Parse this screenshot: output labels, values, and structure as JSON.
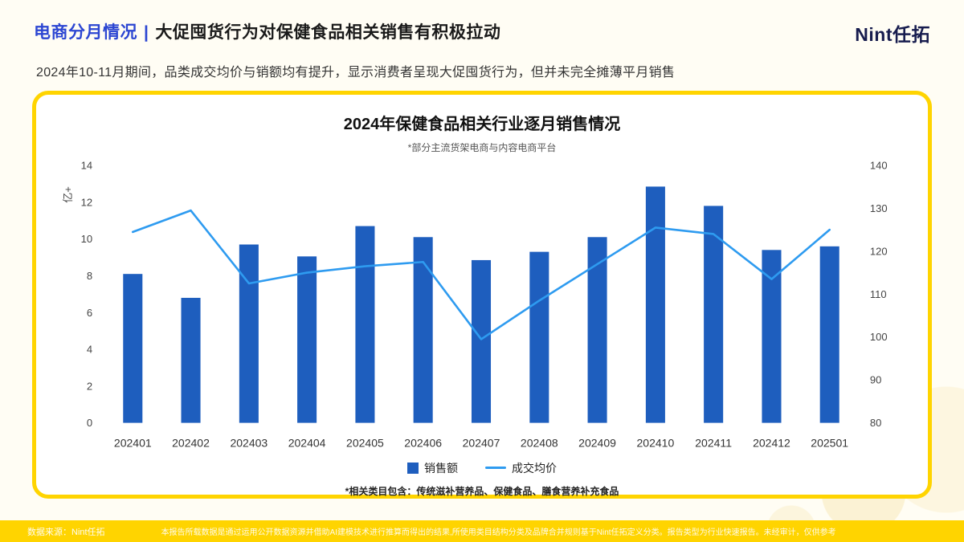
{
  "header": {
    "title_accent": "电商分月情况",
    "title_separator": "|",
    "title_main": "大促囤货行为对保健食品相关销售有积极拉动",
    "logo": "Nint任拓"
  },
  "subtitle": "2024年10-11月期间，品类成交均价与销额均有提升，显示消费者呈现大促囤货行为，但并未完全摊薄平月销售",
  "chart_data": {
    "type": "bar",
    "title": "2024年保健食品相关行业逐月销售情况",
    "subtitle": "*部分主流货架电商与内容电商平台",
    "categories": [
      "202401",
      "202402",
      "202403",
      "202404",
      "202405",
      "202406",
      "202407",
      "202408",
      "202409",
      "202410",
      "202411",
      "202412",
      "202501"
    ],
    "series": [
      {
        "name": "销售额",
        "type": "bar",
        "axis": "left",
        "color": "#1e5ebe",
        "values": [
          8.1,
          6.8,
          9.7,
          9.05,
          10.7,
          10.1,
          8.85,
          9.3,
          10.1,
          12.85,
          11.8,
          9.4,
          9.6
        ]
      },
      {
        "name": "成交均价",
        "type": "line",
        "axis": "right",
        "color": "#2e9bf0",
        "values": [
          124.5,
          129.5,
          112.5,
          115,
          116.5,
          117.5,
          99.5,
          108.5,
          117,
          125.5,
          124,
          113.5,
          125
        ]
      }
    ],
    "left_axis": {
      "label": "亿+",
      "min": 0,
      "max": 14,
      "step": 2
    },
    "right_axis": {
      "label": "",
      "min": 80,
      "max": 140,
      "step": 10
    },
    "legend_position": "bottom",
    "grid": false
  },
  "chart_footnote": "*相关类目包含：传统滋补营养品、保健食品、膳食营养补充食品",
  "footer": {
    "source": "数据来源：Nint任拓",
    "disclaimer": "本报告所载数据是通过运用公开数据资源并借助AI建模技术进行推算而得出的结果,所使用类目结构分类及品牌合并规则基于Nint任拓定义分类。报告类型为行业快速报告。未经审计，仅供参考"
  },
  "colors": {
    "accent_blue": "#2c46d2",
    "bar_blue": "#1e5ebe",
    "line_blue": "#2e9bf0",
    "border_yellow": "#ffd400",
    "background_cream": "#fffdf4"
  }
}
